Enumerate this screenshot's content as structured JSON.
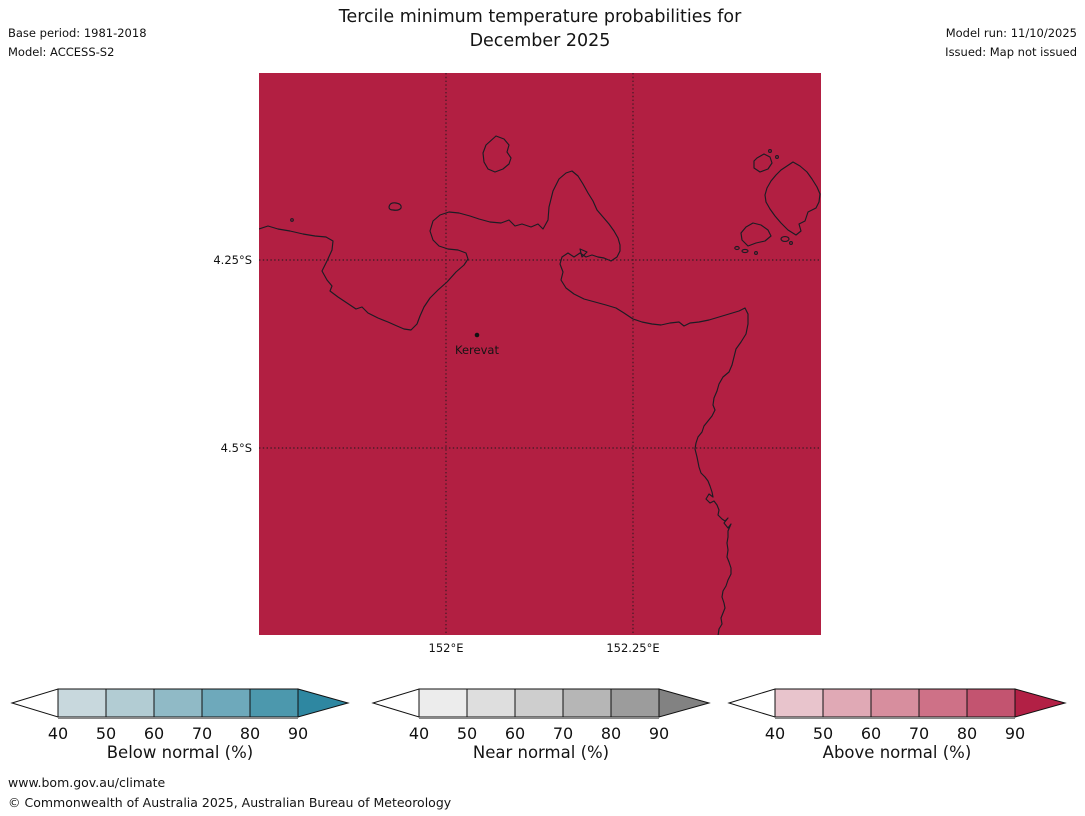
{
  "header": {
    "title_line1": "Tercile minimum temperature probabilities for",
    "title_line2": "December 2025",
    "base_period": "Base period: 1981-2018",
    "model": "Model: ACCESS-S2",
    "model_run": "Model run: 11/10/2025",
    "issued": "Issued: Map not issued"
  },
  "map": {
    "station": "Kerevat",
    "lat_ticks": [
      "4.25°S",
      "4.5°S"
    ],
    "lon_ticks": [
      "152°E",
      "152.25°E"
    ],
    "fill": "#b21f42",
    "coast": "#1c1c24",
    "grid_color": "#1a1a1a"
  },
  "colorbars": [
    {
      "title": "Below normal (%)",
      "ticks": [
        40,
        50,
        60,
        70,
        80,
        90
      ],
      "left_color": "#ffffff",
      "segment_colors": [
        "#c8d8dd",
        "#b2ccd3",
        "#90bac6",
        "#6ea9bb",
        "#4c98ad"
      ],
      "arrow_color": "#2e87a1"
    },
    {
      "title": "Near normal (%)",
      "ticks": [
        40,
        50,
        60,
        70,
        80,
        90
      ],
      "left_color": "#ffffff",
      "segment_colors": [
        "#ececec",
        "#dedede",
        "#cecece",
        "#b6b6b6",
        "#9c9c9c"
      ],
      "arrow_color": "#828282"
    },
    {
      "title": "Above normal (%)",
      "ticks": [
        40,
        50,
        60,
        70,
        80,
        90
      ],
      "left_color": "#ffffff",
      "segment_colors": [
        "#e8c4cc",
        "#e0a9b5",
        "#d78e9e",
        "#ce7187",
        "#c35470"
      ],
      "arrow_color": "#b22045"
    }
  ],
  "footer": {
    "url": "www.bom.gov.au/climate",
    "copyright": "© Commonwealth of Australia 2025, Australian Bureau of Meteorology"
  }
}
